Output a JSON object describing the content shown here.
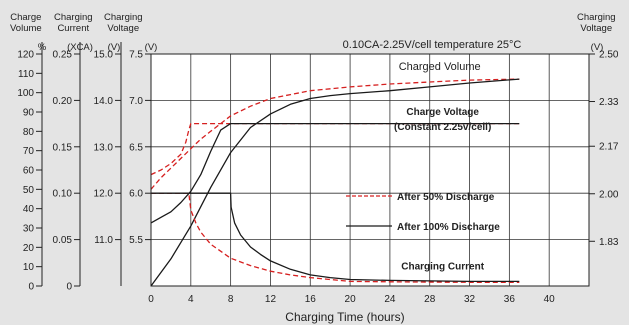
{
  "header_labels": {
    "col1": [
      "Charge",
      "Volume"
    ],
    "col2": [
      "Charging",
      "Current"
    ],
    "col3": [
      "Charging",
      "Voltage"
    ],
    "right": [
      "Charging",
      "Voltage"
    ]
  },
  "chart_data": {
    "type": "line",
    "title": "0.10CA-2.25V/cell   temperature 25°C",
    "xlabel": "Charging Time (hours)",
    "xlim": [
      0,
      44
    ],
    "x_ticks": [
      0,
      4,
      8,
      12,
      16,
      20,
      24,
      28,
      32,
      36,
      40
    ],
    "grid": true,
    "axes": {
      "charge_volume": {
        "unit": "%",
        "min": 0,
        "max": 120,
        "ticks": [
          0,
          10,
          20,
          30,
          40,
          50,
          60,
          70,
          80,
          90,
          100,
          110,
          120
        ]
      },
      "charging_current": {
        "unit": "(XCA)",
        "min": 0,
        "max": 0.25,
        "ticks": [
          "0",
          "0.05",
          "0.10",
          "0.15",
          "0.20",
          "0.25"
        ]
      },
      "charging_voltage_12v": {
        "unit": "(V)",
        "min": 10.0,
        "max": 15.0,
        "ticks": [
          "11.0",
          "12.0",
          "13.0",
          "14.0",
          "15.0"
        ]
      },
      "charging_voltage_6v": {
        "unit": "(V)",
        "min": 5.0,
        "max": 7.5,
        "ticks": [
          "5.5",
          "6.0",
          "6.5",
          "7.0",
          "7.5"
        ]
      },
      "charging_voltage_cell": {
        "unit": "(V)",
        "min": 1.67,
        "max": 2.5,
        "ticks": [
          "1.83",
          "2.00",
          "2.17",
          "2.33",
          "2.50"
        ]
      }
    },
    "annotations": [
      {
        "text": "Charged Volume",
        "x": 29,
        "y6": 7.33
      },
      {
        "text": "Charge Voltage",
        "x": 29.3,
        "y6": 6.84,
        "bold": true
      },
      {
        "text": "(Constant 2.25v/cell)",
        "x": 29.3,
        "y6": 6.68,
        "bold": true
      },
      {
        "text": "Charging Current",
        "x": 29.3,
        "y6": 5.18,
        "bold": true
      }
    ],
    "legend": {
      "position": "center-right",
      "items": [
        {
          "label": "After 50% Discharge",
          "style": "dashed",
          "color": "#d62020"
        },
        {
          "label": "After 100% Discharge",
          "style": "solid",
          "color": "#1a1a1a"
        }
      ]
    },
    "series": [
      {
        "group": "After 50% Discharge",
        "quantity": "Charged Volume",
        "axis": "charge_volume",
        "style": "dashed",
        "color": "#d62020",
        "x": [
          0,
          1,
          2,
          3,
          4,
          5,
          6,
          7,
          8,
          10,
          12,
          14,
          16,
          18,
          20,
          24,
          28,
          32,
          37
        ],
        "y": [
          50,
          56,
          61,
          66,
          71,
          76,
          80,
          84,
          88,
          93,
          97,
          99,
          101,
          102,
          103,
          104.5,
          105.5,
          106.5,
          107
        ]
      },
      {
        "group": "After 100% Discharge",
        "quantity": "Charged Volume",
        "axis": "charge_volume",
        "style": "solid",
        "color": "#1a1a1a",
        "x": [
          0,
          2,
          4,
          6,
          8,
          10,
          12,
          14,
          16,
          18,
          20,
          24,
          28,
          32,
          37
        ],
        "y": [
          0,
          14,
          31,
          51,
          69,
          82,
          89,
          94,
          97,
          98.5,
          99.5,
          101,
          103,
          105,
          107
        ]
      },
      {
        "group": "After 50% Discharge",
        "quantity": "Charge Voltage",
        "axis": "charging_voltage_6v",
        "style": "dashed",
        "color": "#d62020",
        "x": [
          0,
          1,
          2,
          3,
          3.5,
          3.8,
          4,
          37
        ],
        "y": [
          6.2,
          6.25,
          6.32,
          6.42,
          6.55,
          6.68,
          6.75,
          6.75
        ]
      },
      {
        "group": "After 100% Discharge",
        "quantity": "Charge Voltage",
        "axis": "charging_voltage_6v",
        "style": "solid",
        "color": "#1a1a1a",
        "x": [
          0,
          1,
          2,
          3,
          4,
          5,
          6,
          7,
          8,
          37
        ],
        "y": [
          5.68,
          5.74,
          5.8,
          5.9,
          6.02,
          6.2,
          6.45,
          6.68,
          6.75,
          6.75
        ]
      },
      {
        "group": "After 50% Discharge",
        "quantity": "Charging Current",
        "axis": "charging_current",
        "style": "dashed",
        "color": "#d62020",
        "x": [
          0,
          3,
          3.8,
          4,
          4.5,
          5,
          6,
          8,
          10,
          12,
          14,
          16,
          18,
          20,
          24,
          28,
          32,
          37
        ],
        "y": [
          0.1,
          0.1,
          0.1,
          0.082,
          0.068,
          0.058,
          0.045,
          0.03,
          0.022,
          0.016,
          0.012,
          0.009,
          0.007,
          0.005,
          0.0045,
          0.0042,
          0.004,
          0.004
        ]
      },
      {
        "group": "After 100% Discharge",
        "quantity": "Charging Current",
        "axis": "charging_current",
        "style": "solid",
        "color": "#1a1a1a",
        "x": [
          0,
          8,
          8.05,
          8.4,
          9,
          10,
          11,
          12,
          14,
          16,
          18,
          20,
          24,
          28,
          32,
          37
        ],
        "y": [
          0.1,
          0.1,
          0.085,
          0.068,
          0.055,
          0.042,
          0.034,
          0.027,
          0.018,
          0.012,
          0.009,
          0.007,
          0.006,
          0.0055,
          0.005,
          0.005
        ]
      }
    ]
  }
}
